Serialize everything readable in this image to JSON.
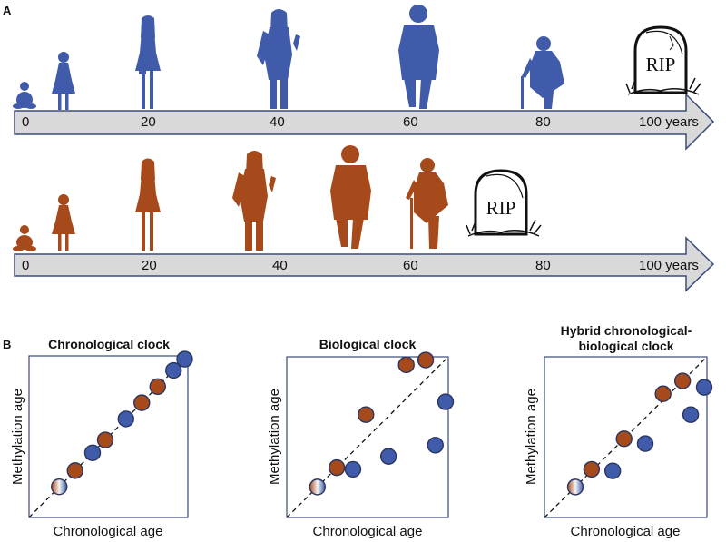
{
  "panel_labels": {
    "a": "A",
    "b": "B"
  },
  "colors": {
    "timeline_a": "#3f5ba9",
    "timeline_b": "#a64a1c",
    "arrow_fill": "#d9d9d9",
    "arrow_stroke": "#3a4a7a"
  },
  "timeline_a": {
    "ticks": [
      {
        "label": "0",
        "value": 0
      },
      {
        "label": "20",
        "value": 20
      },
      {
        "label": "40",
        "value": 40
      },
      {
        "label": "60",
        "value": 60
      },
      {
        "label": "80",
        "value": 80
      },
      {
        "label": "100 years",
        "value": 100
      }
    ],
    "gravestone_text": "RIP"
  },
  "timeline_b": {
    "ticks": [
      {
        "label": "0",
        "value": 0
      },
      {
        "label": "20",
        "value": 20
      },
      {
        "label": "40",
        "value": 40
      },
      {
        "label": "60",
        "value": 60
      },
      {
        "label": "80",
        "value": 80
      },
      {
        "label": "100 years",
        "value": 100
      }
    ],
    "gravestone_text": "RIP"
  },
  "chart_data": [
    {
      "type": "scatter",
      "title": "Chronological clock",
      "xlabel": "Chronological age",
      "ylabel": "Methylation age",
      "reference_line": "diagonal-dashed",
      "xlim": [
        0,
        1
      ],
      "ylim": [
        0,
        1
      ],
      "points": [
        {
          "x": 0.19,
          "y": 0.19,
          "group": "start"
        },
        {
          "x": 0.29,
          "y": 0.29,
          "group": "brown"
        },
        {
          "x": 0.4,
          "y": 0.4,
          "group": "blue"
        },
        {
          "x": 0.48,
          "y": 0.48,
          "group": "brown"
        },
        {
          "x": 0.61,
          "y": 0.61,
          "group": "blue"
        },
        {
          "x": 0.71,
          "y": 0.71,
          "group": "brown"
        },
        {
          "x": 0.81,
          "y": 0.81,
          "group": "brown"
        },
        {
          "x": 0.91,
          "y": 0.91,
          "group": "blue"
        },
        {
          "x": 0.98,
          "y": 0.98,
          "group": "blue"
        }
      ]
    },
    {
      "type": "scatter",
      "title": "Biological clock",
      "xlabel": "Chronological age",
      "ylabel": "Methylation age",
      "reference_line": "diagonal-dashed",
      "xlim": [
        0,
        1
      ],
      "ylim": [
        0,
        1
      ],
      "points": [
        {
          "x": 0.19,
          "y": 0.19,
          "group": "start"
        },
        {
          "x": 0.31,
          "y": 0.31,
          "group": "brown"
        },
        {
          "x": 0.41,
          "y": 0.3,
          "group": "blue"
        },
        {
          "x": 0.49,
          "y": 0.64,
          "group": "brown"
        },
        {
          "x": 0.63,
          "y": 0.38,
          "group": "blue"
        },
        {
          "x": 0.74,
          "y": 0.95,
          "group": "brown"
        },
        {
          "x": 0.86,
          "y": 0.98,
          "group": "brown"
        },
        {
          "x": 0.92,
          "y": 0.45,
          "group": "blue"
        },
        {
          "x": 0.99,
          "y": 0.72,
          "group": "blue"
        }
      ]
    },
    {
      "type": "scatter",
      "title": "Hybrid chronological-biological clock",
      "title_lines": [
        "Hybrid chronological-",
        "biological clock"
      ],
      "xlabel": "Chronological age",
      "ylabel": "Methylation age",
      "reference_line": "diagonal-dashed",
      "xlim": [
        0,
        1
      ],
      "ylim": [
        0,
        1
      ],
      "points": [
        {
          "x": 0.19,
          "y": 0.19,
          "group": "start"
        },
        {
          "x": 0.29,
          "y": 0.3,
          "group": "brown"
        },
        {
          "x": 0.42,
          "y": 0.29,
          "group": "blue"
        },
        {
          "x": 0.49,
          "y": 0.49,
          "group": "brown"
        },
        {
          "x": 0.62,
          "y": 0.46,
          "group": "blue"
        },
        {
          "x": 0.73,
          "y": 0.77,
          "group": "brown"
        },
        {
          "x": 0.85,
          "y": 0.85,
          "group": "brown"
        },
        {
          "x": 0.9,
          "y": 0.64,
          "group": "blue"
        },
        {
          "x": 0.99,
          "y": 0.81,
          "group": "blue"
        }
      ]
    }
  ]
}
